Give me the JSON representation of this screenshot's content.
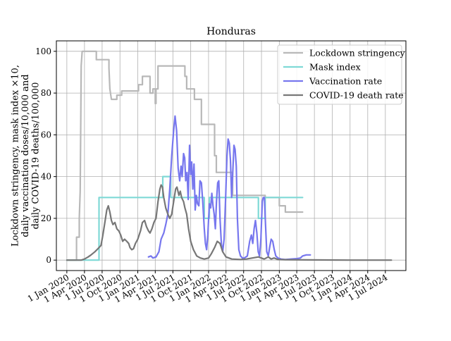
{
  "chart_data": {
    "type": "line",
    "title": "Honduras",
    "ylabel_lines": [
      "Lockdown stringency, mask index ×10,",
      "daily vaccination doses/10,000 and",
      "daily COVID-19 deaths/100,000"
    ],
    "xlabel": "",
    "ylim": [
      -5,
      105
    ],
    "xlim": [
      "2019-11-08",
      "2024-10-15"
    ],
    "y_ticks": [
      0,
      20,
      40,
      60,
      80,
      100
    ],
    "x_ticks": [
      {
        "date": "2020-01-01",
        "label": "1 Jan 2020"
      },
      {
        "date": "2020-04-01",
        "label": "1 Apr 2020"
      },
      {
        "date": "2020-07-01",
        "label": "1 Jul 2020"
      },
      {
        "date": "2020-10-01",
        "label": "1 Oct 2020"
      },
      {
        "date": "2021-01-01",
        "label": "1 Jan 2021"
      },
      {
        "date": "2021-04-01",
        "label": "1 Apr 2021"
      },
      {
        "date": "2021-07-01",
        "label": "1 Jul 2021"
      },
      {
        "date": "2021-10-01",
        "label": "1 Oct 2021"
      },
      {
        "date": "2022-01-01",
        "label": "1 Jan 2022"
      },
      {
        "date": "2022-04-01",
        "label": "1 Apr 2022"
      },
      {
        "date": "2022-07-01",
        "label": "1 Jul 2022"
      },
      {
        "date": "2022-10-01",
        "label": "1 Oct 2022"
      },
      {
        "date": "2023-01-01",
        "label": "1 Jan 2023"
      },
      {
        "date": "2023-04-01",
        "label": "1 Apr 2023"
      },
      {
        "date": "2023-07-01",
        "label": "1 Jul 2023"
      },
      {
        "date": "2023-10-01",
        "label": "1 Oct 2023"
      },
      {
        "date": "2024-01-01",
        "label": "1 Jan 2024"
      },
      {
        "date": "2024-04-01",
        "label": "1 Apr 2024"
      },
      {
        "date": "2024-07-01",
        "label": "1 Jul 2024"
      }
    ],
    "grid": true,
    "legend_position": "top-right",
    "series": [
      {
        "name": "Lockdown stringency",
        "color": "#b8b8b8",
        "step": true,
        "points": [
          [
            "2020-01-01",
            0
          ],
          [
            "2020-02-20",
            0
          ],
          [
            "2020-02-20",
            11
          ],
          [
            "2020-03-05",
            11
          ],
          [
            "2020-03-05",
            20
          ],
          [
            "2020-03-10",
            33
          ],
          [
            "2020-03-13",
            70
          ],
          [
            "2020-03-15",
            93
          ],
          [
            "2020-03-20",
            100
          ],
          [
            "2020-06-01",
            100
          ],
          [
            "2020-06-01",
            96
          ],
          [
            "2020-08-05",
            96
          ],
          [
            "2020-08-05",
            92
          ],
          [
            "2020-08-10",
            82
          ],
          [
            "2020-08-18",
            77
          ],
          [
            "2020-09-15",
            77
          ],
          [
            "2020-09-15",
            79
          ],
          [
            "2020-10-10",
            79
          ],
          [
            "2020-10-10",
            81
          ],
          [
            "2021-01-05",
            81
          ],
          [
            "2021-01-05",
            84
          ],
          [
            "2021-01-25",
            84
          ],
          [
            "2021-01-25",
            88
          ],
          [
            "2021-03-05",
            88
          ],
          [
            "2021-03-05",
            80
          ],
          [
            "2021-03-20",
            80
          ],
          [
            "2021-03-20",
            82
          ],
          [
            "2021-04-01",
            82
          ],
          [
            "2021-04-01",
            75
          ],
          [
            "2021-04-05",
            75
          ],
          [
            "2021-04-05",
            82
          ],
          [
            "2021-04-15",
            82
          ],
          [
            "2021-04-15",
            93
          ],
          [
            "2021-09-01",
            93
          ],
          [
            "2021-09-01",
            88
          ],
          [
            "2021-09-10",
            88
          ],
          [
            "2021-09-10",
            82
          ],
          [
            "2021-10-20",
            82
          ],
          [
            "2021-10-20",
            77
          ],
          [
            "2021-11-25",
            77
          ],
          [
            "2021-11-25",
            65
          ],
          [
            "2022-02-01",
            65
          ],
          [
            "2022-02-01",
            50
          ],
          [
            "2022-02-10",
            50
          ],
          [
            "2022-02-10",
            42
          ],
          [
            "2022-05-05",
            42
          ],
          [
            "2022-05-05",
            31
          ],
          [
            "2022-10-20",
            31
          ],
          [
            "2022-10-20",
            30
          ],
          [
            "2023-01-01",
            30
          ],
          [
            "2023-01-01",
            26
          ],
          [
            "2023-02-01",
            26
          ],
          [
            "2023-02-01",
            23
          ],
          [
            "2023-05-01",
            23
          ]
        ]
      },
      {
        "name": "Mask index",
        "color": "#7fd9d6",
        "step": true,
        "points": [
          [
            "2020-01-01",
            0
          ],
          [
            "2020-06-15",
            0
          ],
          [
            "2020-06-15",
            30
          ],
          [
            "2021-05-10",
            30
          ],
          [
            "2021-05-10",
            40
          ],
          [
            "2021-06-20",
            40
          ],
          [
            "2021-06-20",
            30
          ],
          [
            "2021-12-10",
            30
          ],
          [
            "2021-12-10",
            20
          ],
          [
            "2022-01-05",
            20
          ],
          [
            "2022-01-05",
            30
          ],
          [
            "2022-09-15",
            30
          ],
          [
            "2022-09-15",
            20
          ],
          [
            "2022-10-20",
            20
          ],
          [
            "2022-10-20",
            30
          ],
          [
            "2023-05-01",
            30
          ]
        ]
      },
      {
        "name": "Vaccination rate",
        "color": "#7777ee",
        "step": false,
        "points": [
          [
            "2021-02-25",
            1.5
          ],
          [
            "2021-03-10",
            2
          ],
          [
            "2021-03-20",
            1
          ],
          [
            "2021-04-05",
            1.5
          ],
          [
            "2021-04-20",
            4
          ],
          [
            "2021-05-01",
            10
          ],
          [
            "2021-05-15",
            13
          ],
          [
            "2021-05-25",
            17
          ],
          [
            "2021-06-05",
            22
          ],
          [
            "2021-06-15",
            34
          ],
          [
            "2021-06-25",
            50
          ],
          [
            "2021-07-05",
            62
          ],
          [
            "2021-07-12",
            69
          ],
          [
            "2021-07-20",
            62
          ],
          [
            "2021-07-28",
            44
          ],
          [
            "2021-08-05",
            38
          ],
          [
            "2021-08-12",
            45
          ],
          [
            "2021-08-18",
            40
          ],
          [
            "2021-08-25",
            51
          ],
          [
            "2021-08-31",
            49
          ],
          [
            "2021-09-05",
            38
          ],
          [
            "2021-09-12",
            42
          ],
          [
            "2021-09-18",
            29
          ],
          [
            "2021-09-25",
            55
          ],
          [
            "2021-10-01",
            41
          ],
          [
            "2021-10-06",
            47
          ],
          [
            "2021-10-12",
            34
          ],
          [
            "2021-10-18",
            46
          ],
          [
            "2021-10-24",
            24
          ],
          [
            "2021-10-30",
            31
          ],
          [
            "2021-11-05",
            27
          ],
          [
            "2021-11-12",
            26
          ],
          [
            "2021-11-18",
            38
          ],
          [
            "2021-11-25",
            37
          ],
          [
            "2021-12-02",
            28
          ],
          [
            "2021-12-10",
            15
          ],
          [
            "2021-12-16",
            8
          ],
          [
            "2021-12-22",
            5
          ],
          [
            "2021-12-28",
            12
          ],
          [
            "2022-01-05",
            27
          ],
          [
            "2022-01-12",
            25
          ],
          [
            "2022-01-18",
            32
          ],
          [
            "2022-01-24",
            26
          ],
          [
            "2022-01-30",
            22
          ],
          [
            "2022-02-05",
            15
          ],
          [
            "2022-02-11",
            28
          ],
          [
            "2022-02-17",
            37
          ],
          [
            "2022-02-23",
            38
          ],
          [
            "2022-03-01",
            20
          ],
          [
            "2022-03-08",
            8
          ],
          [
            "2022-03-15",
            4
          ],
          [
            "2022-03-22",
            10
          ],
          [
            "2022-03-30",
            30
          ],
          [
            "2022-04-06",
            50
          ],
          [
            "2022-04-12",
            58
          ],
          [
            "2022-04-18",
            56
          ],
          [
            "2022-04-24",
            48
          ],
          [
            "2022-04-30",
            30
          ],
          [
            "2022-05-06",
            42
          ],
          [
            "2022-05-12",
            55
          ],
          [
            "2022-05-18",
            53
          ],
          [
            "2022-05-24",
            45
          ],
          [
            "2022-05-30",
            20
          ],
          [
            "2022-06-06",
            5
          ],
          [
            "2022-06-15",
            2
          ],
          [
            "2022-06-25",
            1
          ],
          [
            "2022-07-05",
            1
          ],
          [
            "2022-07-20",
            2
          ],
          [
            "2022-08-01",
            9
          ],
          [
            "2022-08-10",
            12
          ],
          [
            "2022-08-17",
            8
          ],
          [
            "2022-08-24",
            15
          ],
          [
            "2022-08-31",
            19
          ],
          [
            "2022-09-07",
            13
          ],
          [
            "2022-09-14",
            4
          ],
          [
            "2022-09-21",
            2
          ],
          [
            "2022-09-28",
            10
          ],
          [
            "2022-10-05",
            28
          ],
          [
            "2022-10-10",
            30
          ],
          [
            "2022-10-16",
            30
          ],
          [
            "2022-10-22",
            17
          ],
          [
            "2022-10-28",
            4
          ],
          [
            "2022-11-05",
            2
          ],
          [
            "2022-11-12",
            6
          ],
          [
            "2022-11-20",
            10
          ],
          [
            "2022-11-28",
            9
          ],
          [
            "2022-12-06",
            5
          ],
          [
            "2022-12-14",
            2
          ],
          [
            "2022-12-25",
            1
          ],
          [
            "2023-01-10",
            0.5
          ],
          [
            "2023-02-01",
            0.3
          ],
          [
            "2023-03-01",
            0.5
          ],
          [
            "2023-04-01",
            0.7
          ],
          [
            "2023-04-20",
            1
          ],
          [
            "2023-05-01",
            2
          ],
          [
            "2023-05-20",
            2.5
          ],
          [
            "2023-06-10",
            2.5
          ]
        ]
      },
      {
        "name": "COVID-19 death rate",
        "color": "#777777",
        "step": false,
        "points": [
          [
            "2020-01-01",
            0
          ],
          [
            "2020-03-15",
            0
          ],
          [
            "2020-04-01",
            0.5
          ],
          [
            "2020-04-20",
            1.5
          ],
          [
            "2020-05-05",
            2.5
          ],
          [
            "2020-05-25",
            4
          ],
          [
            "2020-06-10",
            5.5
          ],
          [
            "2020-06-25",
            7
          ],
          [
            "2020-07-05",
            12
          ],
          [
            "2020-07-15",
            18
          ],
          [
            "2020-07-25",
            24
          ],
          [
            "2020-08-02",
            26
          ],
          [
            "2020-08-10",
            23
          ],
          [
            "2020-08-18",
            19
          ],
          [
            "2020-08-26",
            17
          ],
          [
            "2020-09-05",
            18
          ],
          [
            "2020-09-15",
            15
          ],
          [
            "2020-09-25",
            14
          ],
          [
            "2020-10-05",
            12
          ],
          [
            "2020-10-15",
            9
          ],
          [
            "2020-10-25",
            10
          ],
          [
            "2020-11-05",
            9
          ],
          [
            "2020-11-15",
            8
          ],
          [
            "2020-11-22",
            6
          ],
          [
            "2020-12-01",
            5
          ],
          [
            "2020-12-10",
            5.5
          ],
          [
            "2020-12-20",
            8
          ],
          [
            "2021-01-01",
            10
          ],
          [
            "2021-01-15",
            14
          ],
          [
            "2021-01-25",
            18
          ],
          [
            "2021-02-05",
            19
          ],
          [
            "2021-02-15",
            16
          ],
          [
            "2021-02-25",
            14
          ],
          [
            "2021-03-05",
            13
          ],
          [
            "2021-03-15",
            15
          ],
          [
            "2021-03-25",
            18
          ],
          [
            "2021-04-05",
            20
          ],
          [
            "2021-04-15",
            28
          ],
          [
            "2021-04-25",
            34
          ],
          [
            "2021-05-01",
            36
          ],
          [
            "2021-05-08",
            35
          ],
          [
            "2021-05-15",
            30
          ],
          [
            "2021-05-25",
            25
          ],
          [
            "2021-06-05",
            22
          ],
          [
            "2021-06-15",
            20
          ],
          [
            "2021-06-25",
            22
          ],
          [
            "2021-07-05",
            28
          ],
          [
            "2021-07-15",
            34
          ],
          [
            "2021-07-22",
            35
          ],
          [
            "2021-08-01",
            31
          ],
          [
            "2021-08-08",
            33
          ],
          [
            "2021-08-15",
            30
          ],
          [
            "2021-08-25",
            28
          ],
          [
            "2021-09-01",
            25
          ],
          [
            "2021-09-10",
            22
          ],
          [
            "2021-09-20",
            15
          ],
          [
            "2021-10-01",
            9
          ],
          [
            "2021-10-15",
            5
          ],
          [
            "2021-11-01",
            2
          ],
          [
            "2021-11-20",
            1
          ],
          [
            "2021-12-10",
            0.5
          ],
          [
            "2022-01-01",
            1
          ],
          [
            "2022-01-15",
            3
          ],
          [
            "2022-02-01",
            6
          ],
          [
            "2022-02-15",
            9
          ],
          [
            "2022-03-01",
            8
          ],
          [
            "2022-03-15",
            4
          ],
          [
            "2022-04-01",
            1.5
          ],
          [
            "2022-05-01",
            0.5
          ],
          [
            "2022-06-15",
            0.3
          ],
          [
            "2022-07-15",
            0.5
          ],
          [
            "2022-08-15",
            1
          ],
          [
            "2022-09-15",
            1.5
          ],
          [
            "2022-10-15",
            0.5
          ],
          [
            "2022-11-05",
            1.5
          ],
          [
            "2022-11-20",
            0.5
          ],
          [
            "2022-12-05",
            1
          ],
          [
            "2022-12-25",
            0.3
          ],
          [
            "2023-02-01",
            0.2
          ],
          [
            "2023-06-01",
            0.1
          ],
          [
            "2024-01-01",
            0
          ],
          [
            "2024-08-01",
            0
          ]
        ]
      }
    ]
  }
}
